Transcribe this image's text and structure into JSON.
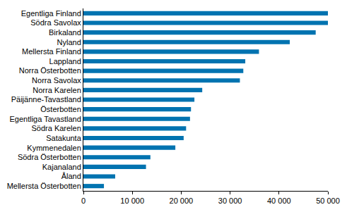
{
  "chart_data": {
    "type": "bar",
    "orientation": "horizontal",
    "categories": [
      "Egentliga Finland",
      "Södra Savolax",
      "Birkaland",
      "Nyland",
      "Mellersta Finland",
      "Lappland",
      "Norra Österbotten",
      "Norra Savolax",
      "Norra Karelen",
      "Päijänne-Tavastland",
      "Österbotten",
      "Egentliga Tavastland",
      "Södra Karelen",
      "Satakunta",
      "Kymmenedalen",
      "Södra Österbotten",
      "Kajanaland",
      "Åland",
      "Mellersta Österbotten"
    ],
    "values": [
      50000,
      50000,
      47500,
      42200,
      35900,
      33100,
      32700,
      32000,
      24300,
      22700,
      22000,
      21800,
      21000,
      20500,
      18800,
      13700,
      12800,
      6500,
      4200
    ],
    "color": "#0073b0",
    "xlim": [
      0,
      50000
    ],
    "xticks": [
      0,
      {
        "value": 10000,
        "label": "10 000"
      },
      {
        "value": 20000,
        "label": "20 000"
      },
      {
        "value": 30000,
        "label": "30 000"
      },
      {
        "value": 40000,
        "label": "40 000"
      },
      {
        "value": 50000,
        "label": "50 000"
      }
    ],
    "grid": false
  }
}
